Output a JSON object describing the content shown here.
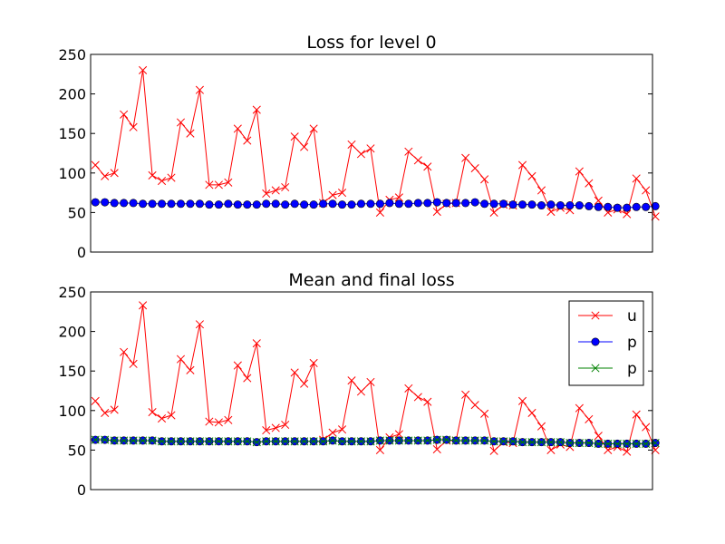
{
  "chart_data": [
    {
      "type": "line",
      "title": "Loss for level 0",
      "xlabel": "",
      "ylabel": "",
      "ylim": [
        0,
        250
      ],
      "yticks": [
        0,
        50,
        100,
        150,
        200,
        250
      ],
      "grid": false,
      "x_ticks_shown": false,
      "x": [
        1,
        2,
        3,
        4,
        5,
        6,
        7,
        8,
        9,
        10,
        11,
        12,
        13,
        14,
        15,
        16,
        17,
        18,
        19,
        20,
        21,
        22,
        23,
        24,
        25,
        26,
        27,
        28,
        29,
        30,
        31,
        32,
        33,
        34,
        35,
        36,
        37,
        38,
        39,
        40,
        41,
        42,
        43,
        44,
        45,
        46,
        47,
        48,
        49,
        50,
        51,
        52,
        53,
        54,
        55,
        56,
        57,
        58,
        59,
        60
      ],
      "series": [
        {
          "color": "#ff0000",
          "marker": "x",
          "values": [
            110,
            96,
            100,
            174,
            158,
            230,
            97,
            90,
            94,
            164,
            150,
            205,
            85,
            85,
            88,
            156,
            141,
            180,
            74,
            78,
            82,
            146,
            133,
            156,
            62,
            72,
            75,
            136,
            124,
            131,
            50,
            66,
            69,
            127,
            116,
            108,
            51,
            61,
            62,
            119,
            106,
            92,
            50,
            60,
            59,
            110,
            96,
            78,
            51,
            56,
            53,
            102,
            87,
            65,
            50,
            54,
            48,
            93,
            78,
            45
          ]
        },
        {
          "color": "#0000ff",
          "marker": "o",
          "values": [
            63,
            63,
            62,
            62,
            62,
            61,
            61,
            61,
            61,
            61,
            61,
            61,
            60,
            60,
            61,
            60,
            60,
            60,
            61,
            61,
            60,
            61,
            60,
            60,
            61,
            61,
            60,
            60,
            61,
            61,
            61,
            62,
            61,
            61,
            62,
            62,
            63,
            62,
            62,
            62,
            63,
            61,
            61,
            61,
            60,
            60,
            60,
            59,
            60,
            59,
            59,
            59,
            58,
            57,
            57,
            56,
            56,
            57,
            57,
            58
          ]
        }
      ]
    },
    {
      "type": "line",
      "title": "Mean and final loss",
      "xlabel": "",
      "ylabel": "",
      "ylim": [
        0,
        250
      ],
      "yticks": [
        0,
        50,
        100,
        150,
        200,
        250
      ],
      "grid": false,
      "x_ticks_shown": false,
      "legend_position": "upper right",
      "x": [
        1,
        2,
        3,
        4,
        5,
        6,
        7,
        8,
        9,
        10,
        11,
        12,
        13,
        14,
        15,
        16,
        17,
        18,
        19,
        20,
        21,
        22,
        23,
        24,
        25,
        26,
        27,
        28,
        29,
        30,
        31,
        32,
        33,
        34,
        35,
        36,
        37,
        38,
        39,
        40,
        41,
        42,
        43,
        44,
        45,
        46,
        47,
        48,
        49,
        50,
        51,
        52,
        53,
        54,
        55,
        56,
        57,
        58,
        59,
        60
      ],
      "series": [
        {
          "name": "u",
          "color": "#ff0000",
          "marker": "x",
          "values": [
            112,
            97,
            101,
            174,
            159,
            233,
            98,
            90,
            94,
            165,
            151,
            209,
            86,
            85,
            88,
            157,
            141,
            185,
            75,
            78,
            82,
            148,
            134,
            160,
            63,
            72,
            76,
            138,
            124,
            136,
            50,
            66,
            70,
            128,
            117,
            111,
            51,
            62,
            62,
            120,
            107,
            96,
            49,
            60,
            59,
            112,
            97,
            80,
            50,
            57,
            54,
            103,
            89,
            68,
            50,
            54,
            48,
            95,
            79,
            50
          ]
        },
        {
          "name": "p",
          "color": "#0000ff",
          "marker": "o",
          "values": [
            63,
            63,
            62,
            62,
            62,
            62,
            62,
            61,
            61,
            61,
            61,
            61,
            61,
            61,
            61,
            61,
            61,
            60,
            61,
            61,
            61,
            61,
            61,
            61,
            61,
            62,
            61,
            61,
            61,
            61,
            62,
            62,
            62,
            62,
            62,
            62,
            63,
            63,
            62,
            62,
            62,
            62,
            61,
            61,
            61,
            60,
            60,
            60,
            60,
            60,
            59,
            59,
            59,
            58,
            58,
            58,
            58,
            58,
            58,
            59
          ]
        },
        {
          "name": "p",
          "color": "#008000",
          "marker": "x",
          "values": [
            63,
            63,
            62,
            62,
            62,
            62,
            62,
            61,
            61,
            61,
            61,
            61,
            61,
            61,
            61,
            61,
            61,
            60,
            61,
            61,
            61,
            61,
            61,
            61,
            61,
            62,
            61,
            61,
            61,
            61,
            62,
            62,
            62,
            62,
            62,
            62,
            63,
            63,
            62,
            62,
            62,
            62,
            61,
            61,
            61,
            60,
            60,
            60,
            60,
            60,
            59,
            59,
            59,
            58,
            58,
            58,
            58,
            58,
            58,
            59
          ]
        }
      ]
    }
  ]
}
